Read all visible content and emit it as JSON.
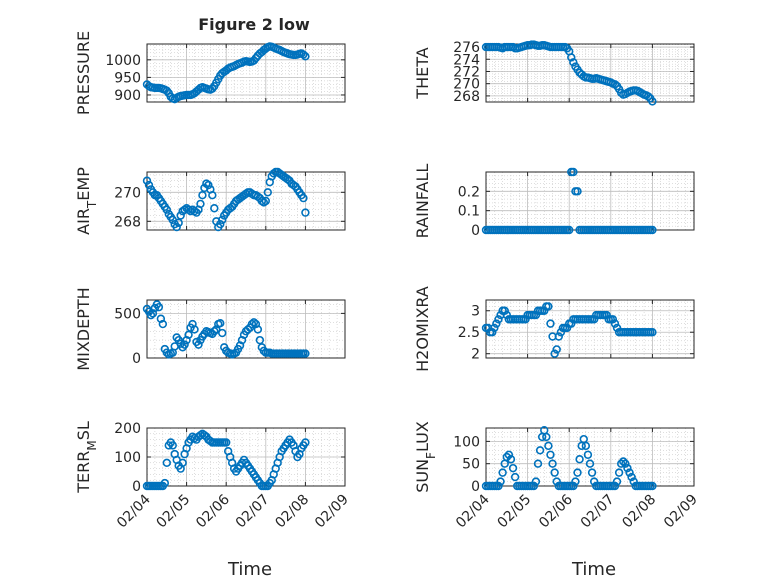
{
  "figure": {
    "title": "Figure 2 low",
    "xlabel": "Time",
    "x_ticks": [
      "02/04",
      "02/05",
      "02/06",
      "02/07",
      "02/08",
      "02/09"
    ]
  },
  "colors": {
    "marker": "#0072BD",
    "axis": "#262626",
    "grid": "#bdbdbd",
    "background": "#ffffff"
  },
  "chart_data": [
    {
      "type": "scatter",
      "ylabel": "PRESSURE",
      "title": "Figure 2 low",
      "yticks": [
        900,
        950,
        1000
      ],
      "ylim": [
        880,
        1045
      ],
      "grid": true,
      "x": [
        4.0,
        4.05,
        4.1,
        4.15,
        4.2,
        4.25,
        4.3,
        4.35,
        4.4,
        4.45,
        4.5,
        4.55,
        4.6,
        4.65,
        4.7,
        4.75,
        4.8,
        4.85,
        4.9,
        4.95,
        5.0,
        5.05,
        5.1,
        5.15,
        5.2,
        5.25,
        5.3,
        5.35,
        5.4,
        5.45,
        5.5,
        5.55,
        5.6,
        5.65,
        5.7,
        5.75,
        5.8,
        5.85,
        5.9,
        5.95,
        6.0,
        6.05,
        6.1,
        6.15,
        6.2,
        6.25,
        6.3,
        6.35,
        6.4,
        6.45,
        6.5,
        6.55,
        6.6,
        6.65,
        6.7,
        6.75,
        6.8,
        6.85,
        6.9,
        6.95,
        7.0,
        7.05,
        7.1,
        7.15,
        7.2,
        7.25,
        7.3,
        7.35,
        7.4,
        7.45,
        7.5,
        7.55,
        7.6,
        7.65,
        7.7,
        7.75,
        7.8,
        7.85,
        7.9,
        7.95,
        8.0
      ],
      "y": [
        930,
        925,
        922,
        921,
        920,
        920,
        920,
        919,
        917,
        915,
        912,
        905,
        895,
        890,
        888,
        892,
        895,
        897,
        898,
        899,
        900,
        900,
        900,
        902,
        905,
        910,
        915,
        920,
        922,
        920,
        918,
        916,
        915,
        918,
        925,
        935,
        945,
        955,
        962,
        966,
        970,
        975,
        978,
        980,
        982,
        985,
        988,
        990,
        992,
        995,
        996,
        995,
        994,
        995,
        998,
        1005,
        1012,
        1018,
        1022,
        1028,
        1032,
        1036,
        1038,
        1037,
        1035,
        1032,
        1030,
        1028,
        1025,
        1022,
        1020,
        1018,
        1016,
        1015,
        1014,
        1014,
        1015,
        1017,
        1018,
        1015,
        1010
      ]
    },
    {
      "type": "scatter",
      "ylabel": "THETA",
      "yticks": [
        268,
        270,
        272,
        274,
        276
      ],
      "ylim": [
        267,
        276.5
      ],
      "grid": true,
      "x": [
        4.0,
        4.05,
        4.1,
        4.15,
        4.2,
        4.25,
        4.3,
        4.35,
        4.4,
        4.45,
        4.5,
        4.55,
        4.6,
        4.65,
        4.7,
        4.75,
        4.8,
        4.85,
        4.9,
        4.95,
        5.0,
        5.05,
        5.1,
        5.15,
        5.2,
        5.25,
        5.3,
        5.35,
        5.4,
        5.45,
        5.5,
        5.55,
        5.6,
        5.65,
        5.7,
        5.75,
        5.8,
        5.85,
        5.9,
        5.95,
        6.0,
        6.05,
        6.1,
        6.15,
        6.2,
        6.25,
        6.3,
        6.35,
        6.4,
        6.45,
        6.5,
        6.55,
        6.6,
        6.65,
        6.7,
        6.75,
        6.8,
        6.85,
        6.9,
        6.95,
        7.0,
        7.05,
        7.1,
        7.15,
        7.2,
        7.25,
        7.3,
        7.35,
        7.4,
        7.45,
        7.5,
        7.55,
        7.6,
        7.65,
        7.7,
        7.75,
        7.8,
        7.85,
        7.9,
        7.95,
        8.0
      ],
      "y": [
        276,
        276,
        276,
        276,
        276,
        276,
        276,
        275.9,
        275.8,
        276,
        276,
        276,
        276,
        276,
        275.8,
        275.8,
        275.9,
        276,
        276.1,
        276.2,
        276.3,
        276.3,
        276.4,
        276.4,
        276.3,
        276.2,
        276.2,
        276.3,
        276.3,
        276.2,
        276.1,
        276,
        276,
        276,
        276,
        276,
        276,
        276,
        276,
        275.8,
        275.3,
        274.3,
        273.5,
        272.8,
        272.3,
        271.8,
        271.5,
        271.2,
        271,
        271,
        270.9,
        270.8,
        270.8,
        270.9,
        270.8,
        270.7,
        270.6,
        270.5,
        270.4,
        270.3,
        270.2,
        270,
        269.9,
        269.6,
        269.1,
        268.5,
        268.2,
        268.3,
        268.5,
        268.7,
        268.8,
        268.9,
        268.9,
        268.8,
        268.6,
        268.4,
        268.2,
        268.1,
        267.9,
        267.6,
        267.1
      ]
    },
    {
      "type": "scatter",
      "ylabel": "AIR_TEMP",
      "yticks": [
        268,
        270
      ],
      "ylim": [
        267.4,
        271.4
      ],
      "grid": true,
      "x": [
        4.0,
        4.05,
        4.1,
        4.15,
        4.2,
        4.25,
        4.3,
        4.35,
        4.4,
        4.45,
        4.5,
        4.55,
        4.6,
        4.65,
        4.7,
        4.75,
        4.8,
        4.85,
        4.9,
        4.95,
        5.0,
        5.05,
        5.1,
        5.15,
        5.2,
        5.25,
        5.3,
        5.35,
        5.4,
        5.45,
        5.5,
        5.55,
        5.6,
        5.65,
        5.7,
        5.75,
        5.8,
        5.85,
        5.9,
        5.95,
        6.0,
        6.05,
        6.1,
        6.15,
        6.2,
        6.25,
        6.3,
        6.35,
        6.4,
        6.45,
        6.5,
        6.55,
        6.6,
        6.65,
        6.7,
        6.75,
        6.8,
        6.85,
        6.9,
        6.95,
        7.0,
        7.05,
        7.1,
        7.15,
        7.2,
        7.25,
        7.3,
        7.35,
        7.4,
        7.45,
        7.5,
        7.55,
        7.6,
        7.65,
        7.7,
        7.75,
        7.8,
        7.85,
        7.9,
        7.95,
        8.0
      ],
      "y": [
        270.8,
        270.5,
        270.2,
        270,
        269.8,
        269.8,
        269.6,
        269.4,
        269.2,
        269,
        268.8,
        268.5,
        268.3,
        268.1,
        267.8,
        267.6,
        267.9,
        268.4,
        268.7,
        268.8,
        268.9,
        268.8,
        268.7,
        268.8,
        268.7,
        268.6,
        268.8,
        269.2,
        269.8,
        270.3,
        270.6,
        270.5,
        270.2,
        269.8,
        268.9,
        268,
        267.6,
        267.8,
        268.1,
        268.4,
        268.6,
        268.8,
        268.9,
        269,
        269.2,
        269.4,
        269.5,
        269.6,
        269.7,
        269.8,
        269.9,
        270,
        270,
        269.9,
        269.8,
        269.8,
        269.7,
        269.6,
        269.4,
        269.3,
        269.4,
        270,
        270.7,
        271.1,
        271.3,
        271.4,
        271.4,
        271.3,
        271.2,
        271.1,
        271,
        270.9,
        270.8,
        270.6,
        270.5,
        270.4,
        270.2,
        270,
        269.8,
        269.6,
        268.6
      ]
    },
    {
      "type": "scatter",
      "ylabel": "RAINFALL",
      "yticks": [
        0,
        0.1,
        0.2
      ],
      "ylim": [
        0,
        0.3
      ],
      "grid": true,
      "x": [
        4.0,
        4.05,
        4.1,
        4.15,
        4.2,
        4.25,
        4.3,
        4.35,
        4.4,
        4.45,
        4.5,
        4.55,
        4.6,
        4.65,
        4.7,
        4.75,
        4.8,
        4.85,
        4.9,
        4.95,
        5.0,
        5.05,
        5.1,
        5.15,
        5.2,
        5.25,
        5.3,
        5.35,
        5.4,
        5.45,
        5.5,
        5.55,
        5.6,
        5.65,
        5.7,
        5.75,
        5.8,
        5.85,
        5.9,
        5.95,
        6.0,
        6.05,
        6.1,
        6.15,
        6.2,
        6.25,
        6.3,
        6.35,
        6.4,
        6.45,
        6.5,
        6.55,
        6.6,
        6.65,
        6.7,
        6.75,
        6.8,
        6.85,
        6.9,
        6.95,
        7.0,
        7.05,
        7.1,
        7.15,
        7.2,
        7.25,
        7.3,
        7.35,
        7.4,
        7.45,
        7.5,
        7.55,
        7.6,
        7.65,
        7.7,
        7.75,
        7.8,
        7.85,
        7.9,
        7.95,
        8.0
      ],
      "y": [
        0,
        0,
        0,
        0,
        0,
        0,
        0,
        0,
        0,
        0,
        0,
        0,
        0,
        0,
        0,
        0,
        0,
        0,
        0,
        0,
        0,
        0,
        0,
        0,
        0,
        0,
        0,
        0,
        0,
        0,
        0,
        0,
        0,
        0,
        0,
        0,
        0,
        0,
        0,
        0,
        0,
        0.3,
        0.3,
        0.2,
        0.2,
        0,
        0,
        0,
        0,
        0,
        0,
        0,
        0,
        0,
        0,
        0,
        0,
        0,
        0,
        0,
        0,
        0,
        0,
        0,
        0,
        0,
        0,
        0,
        0,
        0,
        0,
        0,
        0,
        0,
        0,
        0,
        0,
        0,
        0,
        0,
        0
      ]
    },
    {
      "type": "scatter",
      "ylabel": "MIXDEPTH",
      "yticks": [
        0,
        500
      ],
      "ylim": [
        0,
        650
      ],
      "grid": true,
      "x": [
        4.0,
        4.05,
        4.1,
        4.15,
        4.2,
        4.25,
        4.3,
        4.35,
        4.4,
        4.45,
        4.5,
        4.55,
        4.6,
        4.65,
        4.7,
        4.75,
        4.8,
        4.85,
        4.9,
        4.95,
        5.0,
        5.05,
        5.1,
        5.15,
        5.2,
        5.25,
        5.3,
        5.35,
        5.4,
        5.45,
        5.5,
        5.55,
        5.6,
        5.65,
        5.7,
        5.75,
        5.8,
        5.85,
        5.9,
        5.95,
        6.0,
        6.05,
        6.1,
        6.15,
        6.2,
        6.25,
        6.3,
        6.35,
        6.4,
        6.45,
        6.5,
        6.55,
        6.6,
        6.65,
        6.7,
        6.75,
        6.8,
        6.85,
        6.9,
        6.95,
        7.0,
        7.05,
        7.1,
        7.15,
        7.2,
        7.25,
        7.3,
        7.35,
        7.4,
        7.45,
        7.5,
        7.55,
        7.6,
        7.65,
        7.7,
        7.75,
        7.8,
        7.85,
        7.9,
        7.95,
        8.0
      ],
      "y": [
        550,
        520,
        480,
        500,
        560,
        600,
        570,
        440,
        380,
        100,
        60,
        40,
        50,
        60,
        130,
        230,
        200,
        160,
        120,
        150,
        200,
        260,
        340,
        380,
        320,
        180,
        150,
        200,
        240,
        270,
        300,
        290,
        280,
        270,
        300,
        320,
        380,
        390,
        280,
        120,
        80,
        60,
        50,
        40,
        50,
        60,
        100,
        140,
        200,
        260,
        300,
        320,
        340,
        380,
        400,
        380,
        320,
        200,
        120,
        80,
        60,
        60,
        60,
        50,
        50,
        50,
        50,
        50,
        50,
        50,
        50,
        50,
        50,
        50,
        50,
        50,
        50,
        50,
        50,
        50,
        50
      ]
    },
    {
      "type": "scatter",
      "ylabel": "H2OMIXRA",
      "yticks": [
        2,
        2.5,
        3
      ],
      "ylim": [
        1.9,
        3.25
      ],
      "grid": true,
      "x": [
        4.0,
        4.05,
        4.1,
        4.15,
        4.2,
        4.25,
        4.3,
        4.35,
        4.4,
        4.45,
        4.5,
        4.55,
        4.6,
        4.65,
        4.7,
        4.75,
        4.8,
        4.85,
        4.9,
        4.95,
        5.0,
        5.05,
        5.1,
        5.15,
        5.2,
        5.25,
        5.3,
        5.35,
        5.4,
        5.45,
        5.5,
        5.55,
        5.6,
        5.65,
        5.7,
        5.75,
        5.8,
        5.85,
        5.9,
        5.95,
        6.0,
        6.05,
        6.1,
        6.15,
        6.2,
        6.25,
        6.3,
        6.35,
        6.4,
        6.45,
        6.5,
        6.55,
        6.6,
        6.65,
        6.7,
        6.75,
        6.8,
        6.85,
        6.9,
        6.95,
        7.0,
        7.05,
        7.1,
        7.15,
        7.2,
        7.25,
        7.3,
        7.35,
        7.4,
        7.45,
        7.5,
        7.55,
        7.6,
        7.65,
        7.7,
        7.75,
        7.8,
        7.85,
        7.9,
        7.95,
        8.0
      ],
      "y": [
        2.6,
        2.6,
        2.5,
        2.5,
        2.6,
        2.7,
        2.8,
        2.9,
        3.0,
        3.0,
        2.9,
        2.8,
        2.8,
        2.8,
        2.8,
        2.8,
        2.8,
        2.8,
        2.8,
        2.8,
        2.9,
        2.9,
        2.9,
        2.9,
        2.9,
        3.0,
        3.0,
        3.0,
        3.0,
        3.1,
        3.1,
        2.7,
        2.4,
        2.0,
        2.1,
        2.4,
        2.5,
        2.6,
        2.6,
        2.6,
        2.7,
        2.7,
        2.8,
        2.8,
        2.8,
        2.8,
        2.8,
        2.8,
        2.8,
        2.8,
        2.8,
        2.8,
        2.8,
        2.9,
        2.9,
        2.9,
        2.9,
        2.9,
        2.9,
        2.8,
        2.8,
        2.8,
        2.7,
        2.6,
        2.5,
        2.5,
        2.5,
        2.5,
        2.5,
        2.5,
        2.5,
        2.5,
        2.5,
        2.5,
        2.5,
        2.5,
        2.5,
        2.5,
        2.5,
        2.5,
        2.5
      ]
    },
    {
      "type": "scatter",
      "ylabel": "TERR_MSL",
      "yticks": [
        0,
        100,
        200
      ],
      "ylim": [
        0,
        200
      ],
      "grid": true,
      "x": [
        4.0,
        4.05,
        4.1,
        4.15,
        4.2,
        4.25,
        4.3,
        4.35,
        4.4,
        4.45,
        4.5,
        4.55,
        4.6,
        4.65,
        4.7,
        4.75,
        4.8,
        4.85,
        4.9,
        4.95,
        5.0,
        5.05,
        5.1,
        5.15,
        5.2,
        5.25,
        5.3,
        5.35,
        5.4,
        5.45,
        5.5,
        5.55,
        5.6,
        5.65,
        5.7,
        5.75,
        5.8,
        5.85,
        5.9,
        5.95,
        6.0,
        6.05,
        6.1,
        6.15,
        6.2,
        6.25,
        6.3,
        6.35,
        6.4,
        6.45,
        6.5,
        6.55,
        6.6,
        6.65,
        6.7,
        6.75,
        6.8,
        6.85,
        6.9,
        6.95,
        7.0,
        7.05,
        7.1,
        7.15,
        7.2,
        7.25,
        7.3,
        7.35,
        7.4,
        7.45,
        7.5,
        7.55,
        7.6,
        7.65,
        7.7,
        7.75,
        7.8,
        7.85,
        7.9,
        7.95,
        8.0
      ],
      "y": [
        0,
        0,
        0,
        0,
        0,
        0,
        0,
        0,
        0,
        10,
        80,
        140,
        150,
        140,
        110,
        90,
        70,
        60,
        80,
        110,
        130,
        150,
        160,
        170,
        165,
        160,
        170,
        175,
        180,
        175,
        170,
        160,
        155,
        150,
        150,
        150,
        150,
        150,
        150,
        150,
        150,
        120,
        100,
        80,
        60,
        50,
        60,
        70,
        80,
        90,
        80,
        70,
        60,
        50,
        40,
        30,
        20,
        10,
        0,
        0,
        0,
        0,
        10,
        20,
        40,
        60,
        80,
        100,
        120,
        130,
        140,
        150,
        160,
        150,
        140,
        120,
        100,
        110,
        130,
        140,
        150
      ]
    },
    {
      "type": "scatter",
      "ylabel": "SUN_FLUX",
      "yticks": [
        0,
        50,
        100
      ],
      "ylim": [
        0,
        130
      ],
      "grid": true,
      "x": [
        4.0,
        4.05,
        4.1,
        4.15,
        4.2,
        4.25,
        4.3,
        4.35,
        4.4,
        4.45,
        4.5,
        4.55,
        4.6,
        4.65,
        4.7,
        4.75,
        4.8,
        4.85,
        4.9,
        4.95,
        5.0,
        5.05,
        5.1,
        5.15,
        5.2,
        5.25,
        5.3,
        5.35,
        5.4,
        5.45,
        5.5,
        5.55,
        5.6,
        5.65,
        5.7,
        5.75,
        5.8,
        5.85,
        5.9,
        5.95,
        6.0,
        6.05,
        6.1,
        6.15,
        6.2,
        6.25,
        6.3,
        6.35,
        6.4,
        6.45,
        6.5,
        6.55,
        6.6,
        6.65,
        6.7,
        6.75,
        6.8,
        6.85,
        6.9,
        6.95,
        7.0,
        7.05,
        7.1,
        7.15,
        7.2,
        7.25,
        7.3,
        7.35,
        7.4,
        7.45,
        7.5,
        7.55,
        7.6,
        7.65,
        7.7,
        7.75,
        7.8,
        7.85,
        7.9,
        7.95,
        8.0
      ],
      "y": [
        0,
        0,
        0,
        0,
        0,
        0,
        0,
        10,
        30,
        50,
        65,
        70,
        60,
        40,
        20,
        0,
        0,
        0,
        0,
        0,
        0,
        0,
        0,
        0,
        10,
        50,
        80,
        110,
        125,
        110,
        90,
        70,
        50,
        30,
        10,
        0,
        0,
        0,
        0,
        0,
        0,
        0,
        0,
        10,
        30,
        60,
        90,
        105,
        90,
        70,
        50,
        30,
        10,
        0,
        0,
        0,
        0,
        0,
        0,
        0,
        0,
        0,
        0,
        10,
        30,
        50,
        55,
        50,
        40,
        30,
        20,
        10,
        0,
        0,
        0,
        0,
        0,
        0,
        0,
        0,
        0
      ]
    }
  ]
}
